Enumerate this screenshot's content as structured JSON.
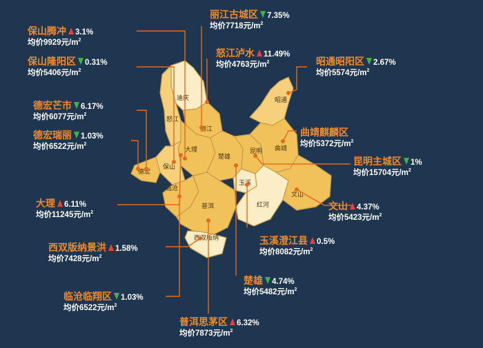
{
  "colors": {
    "background": "#1f3650",
    "accent": "#ee8a2e",
    "up": "#e8403a",
    "down": "#3fb24a"
  },
  "map_labels": {
    "diqing": "迪庆",
    "nujiang": "怒江",
    "lijiang": "丽江",
    "dali": "大理",
    "baoshan": "保山",
    "dehong": "德宏",
    "lincang": "临沧",
    "puer": "普洱",
    "xishuangbanna": "西双版纳",
    "chuxiong": "楚雄",
    "kunming": "昆明",
    "qujing": "曲靖",
    "yuxi": "玉溪",
    "honghe": "红河",
    "wenshan": "文山",
    "zhaotong": "昭通"
  },
  "callouts": [
    {
      "name": "丽江古城区",
      "direction": "down",
      "change": "7.35%",
      "price": "均价7718元/m",
      "unit_sup": "2"
    },
    {
      "name": "保山腾冲",
      "direction": "up",
      "change": "3.1%",
      "price": "均价9929元/m",
      "unit_sup": "2"
    },
    {
      "name": "怒江泸水",
      "direction": "up",
      "change": "11.49%",
      "price": "均价4763元/m",
      "unit_sup": "2"
    },
    {
      "name": "保山隆阳区",
      "direction": "down",
      "change": "0.31%",
      "price": "均价5406元/m",
      "unit_sup": "2"
    },
    {
      "name": "昭通昭阳区",
      "direction": "down",
      "change": "2.67%",
      "price": "均价5574元/m",
      "unit_sup": "2"
    },
    {
      "name": "德宏芒市",
      "direction": "down",
      "change": "6.17%",
      "price": "均价6077元/m",
      "unit_sup": "2"
    },
    {
      "name": "德宏瑞丽",
      "direction": "down",
      "change": "1.03%",
      "price": "均价6522元/m",
      "unit_sup": "2"
    },
    {
      "name": "曲靖麒麟区",
      "direction": "none",
      "change": "",
      "price": "均价5372元/m",
      "unit_sup": "2"
    },
    {
      "name": "昆明主城区",
      "direction": "down",
      "change": "1%",
      "price": "均价15704元/m",
      "unit_sup": "2"
    },
    {
      "name": "大理",
      "direction": "up",
      "change": "6.11%",
      "price": "均价11245元/m",
      "unit_sup": "2"
    },
    {
      "name": "文山",
      "direction": "up",
      "change": "4.37%",
      "price": "均价5423元/m",
      "unit_sup": "2"
    },
    {
      "name": "西双版纳景洪",
      "direction": "up",
      "change": "1.58%",
      "price": "均价7428元/m",
      "unit_sup": "2"
    },
    {
      "name": "玉溪澄江县",
      "direction": "up",
      "change": "0.5%",
      "price": "均价8082元/m",
      "unit_sup": "2"
    },
    {
      "name": "楚雄",
      "direction": "down",
      "change": "4.74%",
      "price": "均价5482元/m",
      "unit_sup": "2"
    },
    {
      "name": "临沧临翔区",
      "direction": "down",
      "change": "1.03%",
      "price": "均价6522元/m",
      "unit_sup": "2"
    },
    {
      "name": "普洱思茅区",
      "direction": "up",
      "change": "6.32%",
      "price": "均价7873元/m",
      "unit_sup": "2"
    }
  ]
}
